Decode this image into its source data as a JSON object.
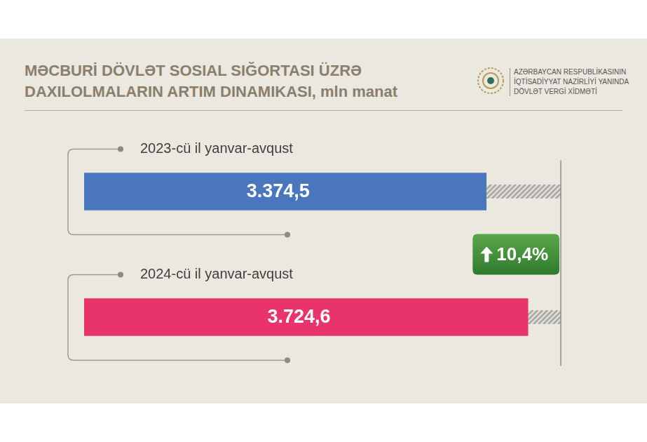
{
  "chart_data": {
    "type": "bar",
    "orientation": "horizontal",
    "title": "MƏCBURİ DÖVLƏT SOSIAL SIĞORTASI ÜZRƏ DAXILOLMALARIN ARTIM DINAMIKASI, mln manat",
    "logo_text": [
      "AZƏRBAYCAN RESPUBLİKASININ",
      "İQTİSADİYYAT NAZİRLİYİ YANINDA",
      "DÖVLƏT VERGİ XİDMƏTİ"
    ],
    "categories": [
      "2023-cü il yanvar-avqust",
      "2024-cü il yanvar-avqust"
    ],
    "values": [
      3374.5,
      3724.6
    ],
    "value_labels": [
      "3.374,5",
      "3.724,6"
    ],
    "colors": [
      "#4a76bd",
      "#e8336b"
    ],
    "annotation": "10,4%",
    "xlim": [
      0,
      4000
    ],
    "data_labels": true,
    "tick_labels": false,
    "grid": false
  }
}
